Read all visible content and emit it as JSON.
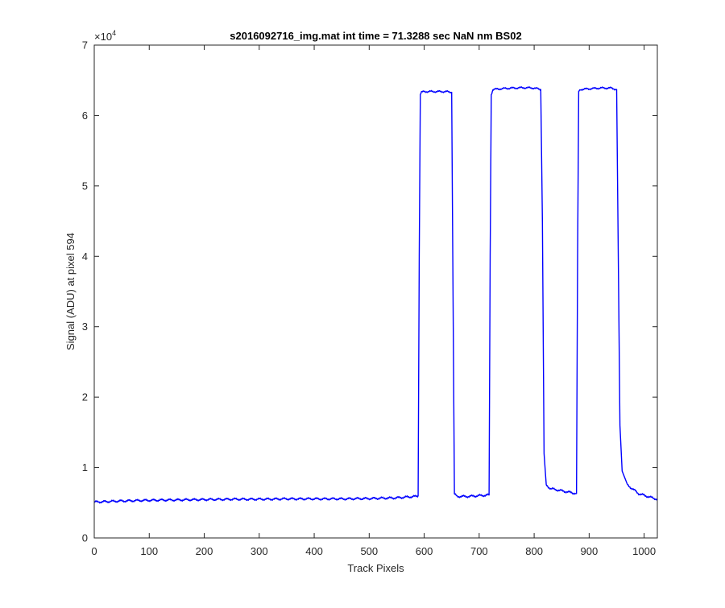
{
  "chart_data": {
    "type": "line",
    "title": "s2016092716_img.mat int time = 71.3288 sec  NaN nm BS02",
    "xlabel": "Track Pixels",
    "ylabel": "Signal (ADU) at pixel 594",
    "xlim": [
      0,
      1024
    ],
    "ylim": [
      0,
      70000
    ],
    "y_exponent_label": "×10",
    "y_exponent_power": "4",
    "x_ticks": [
      0,
      100,
      200,
      300,
      400,
      500,
      600,
      700,
      800,
      900,
      1000
    ],
    "x_tick_labels": [
      "0",
      "100",
      "200",
      "300",
      "400",
      "500",
      "600",
      "700",
      "800",
      "900",
      "1000"
    ],
    "y_ticks": [
      0,
      10000,
      20000,
      30000,
      40000,
      50000,
      60000,
      70000
    ],
    "y_tick_labels": [
      "0",
      "1",
      "2",
      "3",
      "4",
      "5",
      "6",
      "7"
    ],
    "grid": false,
    "series": [
      {
        "color": "#0000ff",
        "x": [
          0,
          50,
          100,
          150,
          200,
          250,
          300,
          350,
          400,
          450,
          500,
          550,
          585,
          589,
          591,
          593,
          595,
          600,
          620,
          640,
          650,
          652,
          655,
          660,
          680,
          700,
          718,
          720,
          722,
          725,
          740,
          760,
          780,
          800,
          812,
          815,
          818,
          822,
          830,
          850,
          870,
          877,
          879,
          881,
          884,
          900,
          920,
          940,
          950,
          953,
          956,
          960,
          970,
          990,
          1010,
          1024
        ],
        "y": [
          5100,
          5250,
          5350,
          5400,
          5450,
          5500,
          5500,
          5550,
          5550,
          5550,
          5600,
          5700,
          5900,
          6000,
          40000,
          63000,
          63300,
          63400,
          63400,
          63400,
          63300,
          40000,
          6200,
          5900,
          5900,
          6000,
          6100,
          40000,
          63000,
          63700,
          63800,
          63900,
          63950,
          63900,
          63700,
          45000,
          12000,
          7500,
          7000,
          6700,
          6400,
          6300,
          40000,
          63400,
          63700,
          63800,
          63900,
          63900,
          63700,
          40000,
          16000,
          9500,
          7500,
          6300,
          5800,
          5500
        ]
      }
    ]
  }
}
